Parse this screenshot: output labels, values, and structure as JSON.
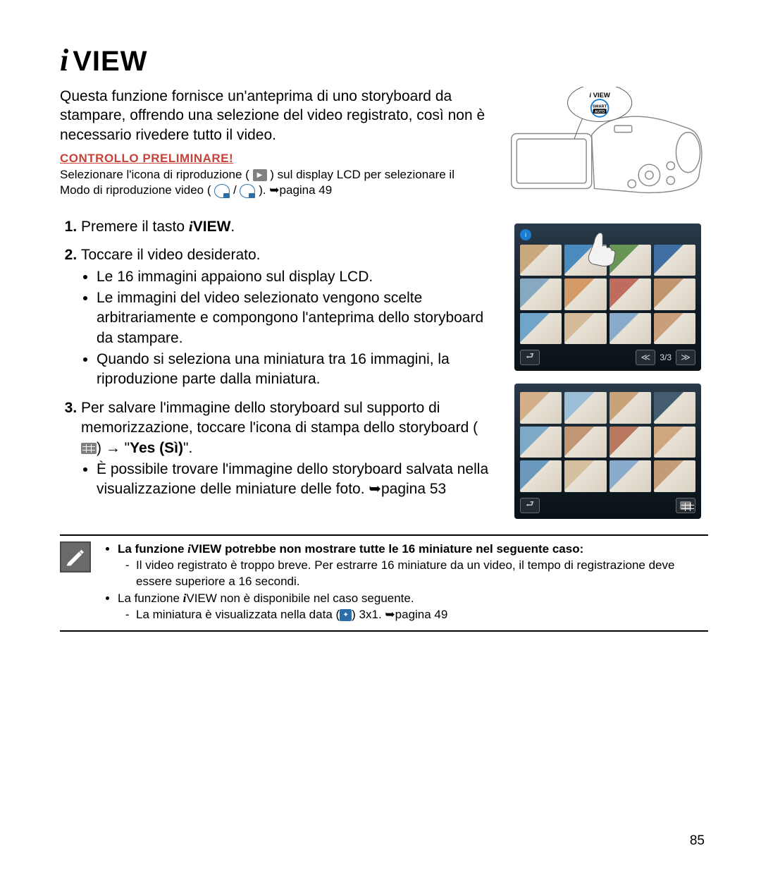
{
  "title": {
    "prefix_i": "i",
    "main": "VIEW"
  },
  "intro": "Questa funzione fornisce un'anteprima di uno storyboard da stampare, offrendo una selezione del video registrato, così non è necessario rivedere tutto il video.",
  "check": {
    "title": "CONTROLLO PRELIMINARE!",
    "line1a": "Selezionare l'icona di riproduzione (",
    "line1b": ") sul display LCD per selezionare il",
    "line2a": "Modo di riproduzione video (",
    "line2b": "/",
    "line2c": "). ➥pagina 49"
  },
  "steps": {
    "s1a": "Premere il tasto ",
    "s1_iview_i": "i",
    "s1_iview_rest": "VIEW",
    "s1b": ".",
    "s2": "Toccare il video desiderato.",
    "s2_sub": [
      "Le 16 immagini appaiono sul display LCD.",
      "Le immagini del video selezionato vengono scelte arbitrariamente e compongono l'anteprima dello storyboard da stampare.",
      "Quando si seleziona una miniatura tra 16 immagini, la riproduzione parte dalla miniatura."
    ],
    "s3a": "Per salvare l'immagine dello storyboard sul supporto di memorizzazione, toccare l'icona di stampa dello storyboard (",
    "s3b": ") → \"",
    "s3_yes": "Yes (Sì)",
    "s3c": "\".",
    "s3_sub1": "È possibile trovare l'immagine dello storyboard salvata nella visualizzazione delle miniature delle foto. ➥pagina 53"
  },
  "camera_callout": {
    "i": "i",
    "rest": "VIEW"
  },
  "screens": {
    "counter1": "3/3",
    "thumb_colors": [
      [
        "#c9a77f",
        "#4a8bbd",
        "#679655",
        "#3f6ea3"
      ],
      [
        "#86a8c0",
        "#d49a68",
        "#bf6c5e",
        "#c1966f"
      ],
      [
        "#70a4c9",
        "#d3bb9a",
        "#88aacb",
        "#c89f7a"
      ]
    ],
    "thumb_colors2": [
      [
        "#d3b089",
        "#9bbfd6",
        "#caa27a",
        "#445c70"
      ],
      [
        "#7da8c6",
        "#c29573",
        "#b8775e",
        "#cfa780"
      ],
      [
        "#6b98bd",
        "#d4bf9e",
        "#89abcd",
        "#c49b77"
      ]
    ]
  },
  "note": {
    "head_a": "La funzione ",
    "head_i": "i",
    "head_rest": "VIEW potrebbe non mostrare tutte le 16 miniature nel seguente caso:",
    "sub1": "Il video registrato è troppo breve. Per estrarre 16 miniature da un video, il tempo di registrazione deve essere superiore a 16 secondi.",
    "l2a": "La funzione ",
    "l2i": "i",
    "l2b": "VIEW non è disponibile nel caso seguente.",
    "sub2a": "La miniatura è visualizzata nella data (",
    "sub2b": ") 3x1. ➥pagina 49"
  },
  "page_number": "85",
  "colors": {
    "accent": "#c4443a",
    "callout_blue": "#1a7fd4"
  }
}
